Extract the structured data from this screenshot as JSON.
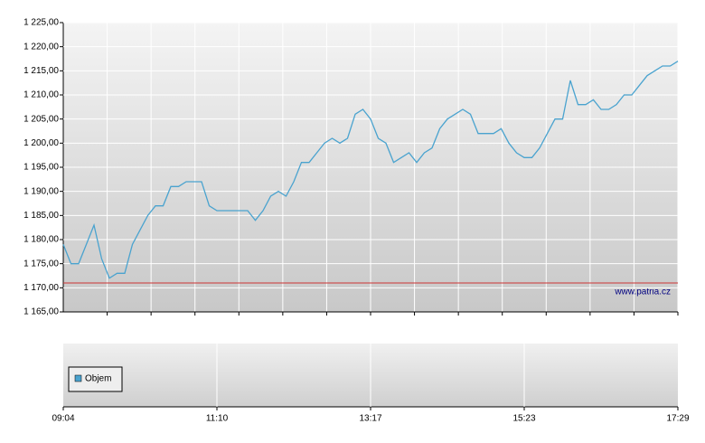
{
  "chart_data": {
    "type": "line",
    "categories": [
      "09:04",
      null,
      null,
      null,
      null,
      null,
      null,
      null,
      null,
      null,
      null,
      null,
      null,
      null,
      null,
      null,
      null,
      null,
      null,
      null,
      "11:10",
      null,
      null,
      null,
      null,
      null,
      null,
      null,
      null,
      null,
      null,
      null,
      null,
      null,
      null,
      null,
      null,
      null,
      null,
      null,
      "13:17",
      null,
      null,
      null,
      null,
      null,
      null,
      null,
      null,
      null,
      null,
      null,
      null,
      null,
      null,
      null,
      null,
      null,
      null,
      null,
      "15:23",
      null,
      null,
      null,
      null,
      null,
      null,
      null,
      null,
      null,
      null,
      null,
      null,
      null,
      null,
      null,
      null,
      null,
      null,
      null,
      "17:29"
    ],
    "series": [
      {
        "color": "#4aa3cf",
        "values": [
          1179,
          1175,
          1175,
          1179,
          1183,
          1176,
          1172,
          1173,
          1173,
          1179,
          1182,
          1185,
          1187,
          1187,
          1191,
          1191,
          1192,
          1192,
          1192,
          1187,
          1186,
          1186,
          1186,
          1186,
          1186,
          1184,
          1186,
          1189,
          1190,
          1189,
          1192,
          1196,
          1196,
          1198,
          1200,
          1201,
          1200,
          1201,
          1206,
          1207,
          1205,
          1201,
          1200,
          1196,
          1197,
          1198,
          1196,
          1198,
          1199,
          1203,
          1205,
          1206,
          1207,
          1206,
          1202,
          1202,
          1202,
          1203,
          1200,
          1198,
          1197,
          1197,
          1199,
          1202,
          1205,
          1205,
          1213,
          1208,
          1208,
          1209,
          1207,
          1207,
          1208,
          1210,
          1210,
          1212,
          1214,
          1215,
          1216,
          1216,
          1217
        ]
      }
    ],
    "ylim": [
      1165,
      1225
    ],
    "yticks": [
      {
        "value": 1165,
        "label": "1 165,00"
      },
      {
        "value": 1170,
        "label": "1 170,00"
      },
      {
        "value": 1175,
        "label": "1 175,00"
      },
      {
        "value": 1180,
        "label": "1 180,00"
      },
      {
        "value": 1185,
        "label": "1 185,00"
      },
      {
        "value": 1190,
        "label": "1 190,00"
      },
      {
        "value": 1195,
        "label": "1 195,00"
      },
      {
        "value": 1200,
        "label": "1 200,00"
      },
      {
        "value": 1205,
        "label": "1 205,00"
      },
      {
        "value": 1210,
        "label": "1 210,00"
      },
      {
        "value": 1215,
        "label": "1 215,00"
      },
      {
        "value": 1220,
        "label": "1 220,00"
      },
      {
        "value": 1225,
        "label": "1 225,00"
      }
    ],
    "grid": true,
    "reference_line": {
      "value": 1171,
      "color": "#cc3333"
    },
    "watermark": "www.patria.cz",
    "volume_legend": "Objem"
  }
}
